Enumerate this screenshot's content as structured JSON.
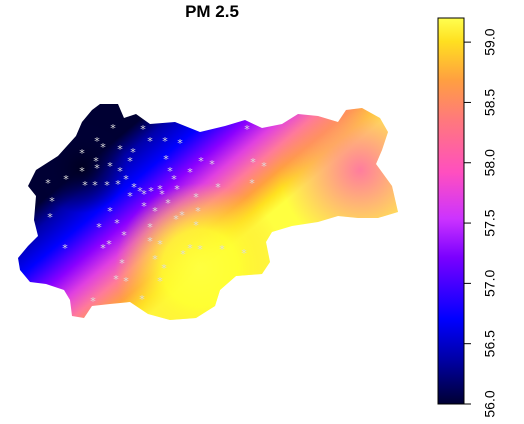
{
  "title": "PM 2.5",
  "colorbar": {
    "min": 56.0,
    "max": 59.2,
    "ticks": [
      "56.0",
      "56.5",
      "57.0",
      "57.5",
      "58.0",
      "58.5",
      "59.0"
    ],
    "tick_values": [
      56.0,
      56.5,
      57.0,
      57.5,
      58.0,
      58.5,
      59.0
    ],
    "palette": [
      "#000033",
      "#0000cc",
      "#5a00ff",
      "#cc33ff",
      "#ff4fbf",
      "#ff9050",
      "#ffd222",
      "#ffff60"
    ]
  },
  "map": {
    "field": {
      "min_color": "#000033",
      "max_color": "#ffff60",
      "low_center": "north-west",
      "high_center": "south"
    },
    "station_marker": "*",
    "station_color": "#dddddd"
  }
}
